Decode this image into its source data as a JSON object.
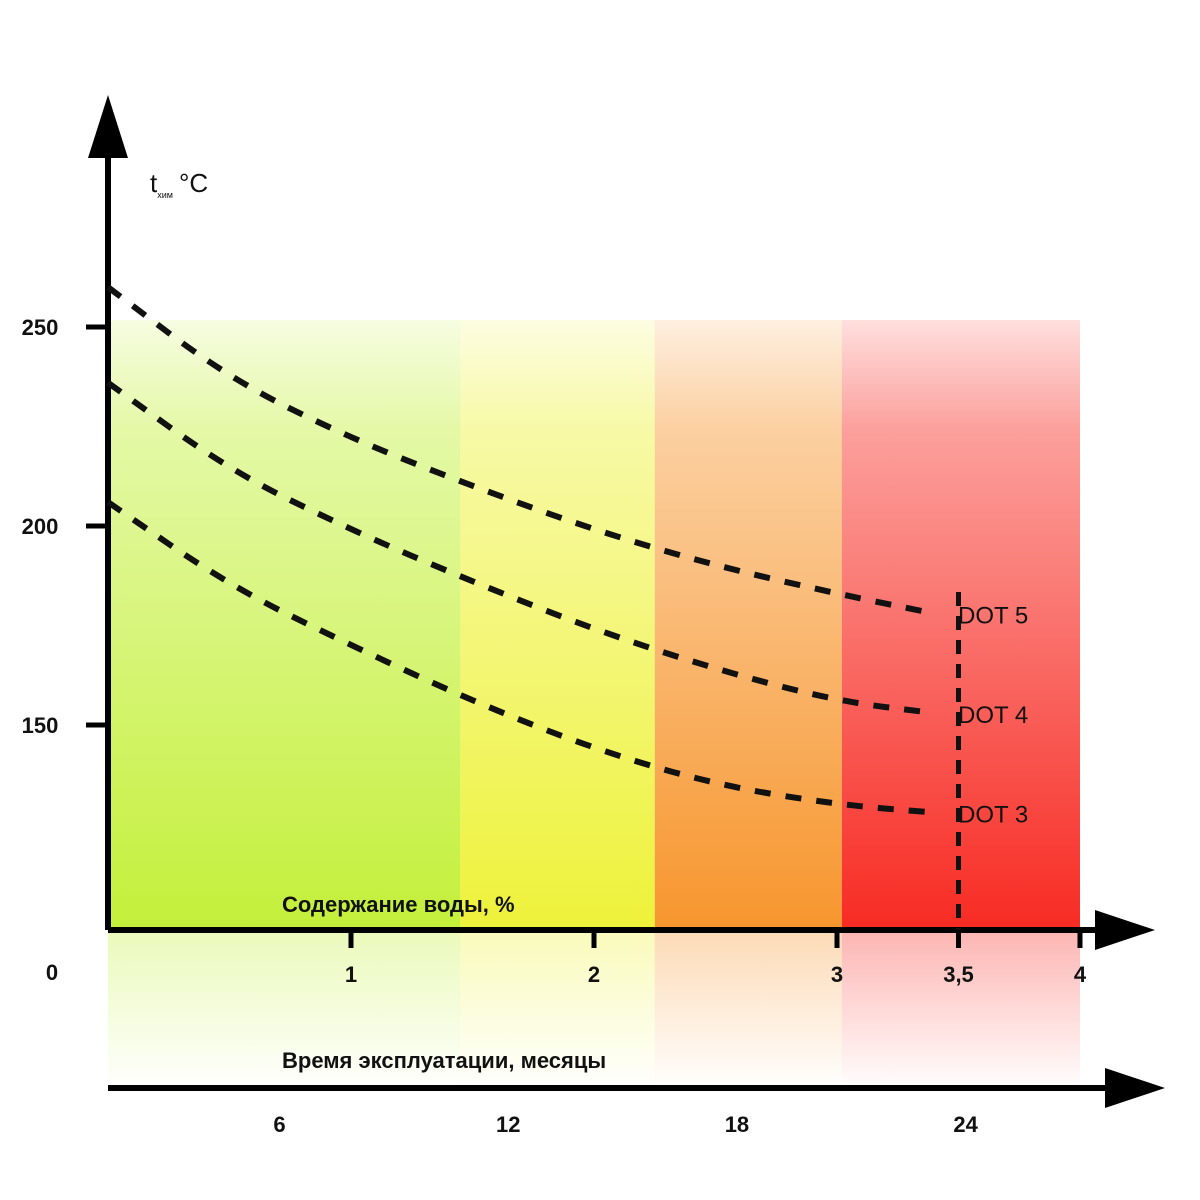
{
  "chart_data": {
    "type": "line",
    "ylabel": "t",
    "ylabel_subscript": "хим",
    "ylabel_unit": "°C",
    "xlabel": "Содержание воды, %",
    "x2label": "Время эксплуатации, месяцы",
    "x_origin_label": "0",
    "yticks": [
      150,
      200,
      250
    ],
    "xticks": [
      {
        "value": 1,
        "label": "1"
      },
      {
        "value": 2,
        "label": "2"
      },
      {
        "value": 3,
        "label": "3"
      },
      {
        "value": 3.5,
        "label": "3,5"
      },
      {
        "value": 4,
        "label": "4"
      }
    ],
    "x2ticks": [
      {
        "value": 6,
        "label": "6"
      },
      {
        "value": 12,
        "label": "12"
      },
      {
        "value": 18,
        "label": "18"
      },
      {
        "value": 24,
        "label": "24"
      }
    ],
    "xlim": [
      0,
      4
    ],
    "ylim": [
      100,
      250
    ],
    "reference_line_x": 3.5,
    "zones": [
      {
        "from": 0,
        "to": 1.45,
        "color": "#c4f03a"
      },
      {
        "from": 1.45,
        "to": 2.25,
        "color": "#eef23a"
      },
      {
        "from": 2.25,
        "to": 3.02,
        "color": "#f7962e"
      },
      {
        "from": 3.02,
        "to": 4,
        "color": "#f72b23"
      }
    ],
    "series": [
      {
        "name": "DOT 5",
        "points": [
          [
            0,
            260
          ],
          [
            0.5,
            237
          ],
          [
            1,
            222
          ],
          [
            1.5,
            210
          ],
          [
            2,
            199
          ],
          [
            2.5,
            190
          ],
          [
            3,
            183
          ],
          [
            3.4,
            178
          ]
        ]
      },
      {
        "name": "DOT 4",
        "points": [
          [
            0,
            236
          ],
          [
            0.5,
            214
          ],
          [
            1,
            199
          ],
          [
            1.5,
            186
          ],
          [
            2,
            174
          ],
          [
            2.5,
            164
          ],
          [
            3,
            156
          ],
          [
            3.4,
            153
          ]
        ]
      },
      {
        "name": "DOT 3",
        "points": [
          [
            0,
            206
          ],
          [
            0.5,
            185
          ],
          [
            1,
            170
          ],
          [
            1.5,
            156
          ],
          [
            2,
            144
          ],
          [
            2.5,
            135
          ],
          [
            3,
            130
          ],
          [
            3.4,
            128
          ]
        ]
      }
    ]
  }
}
